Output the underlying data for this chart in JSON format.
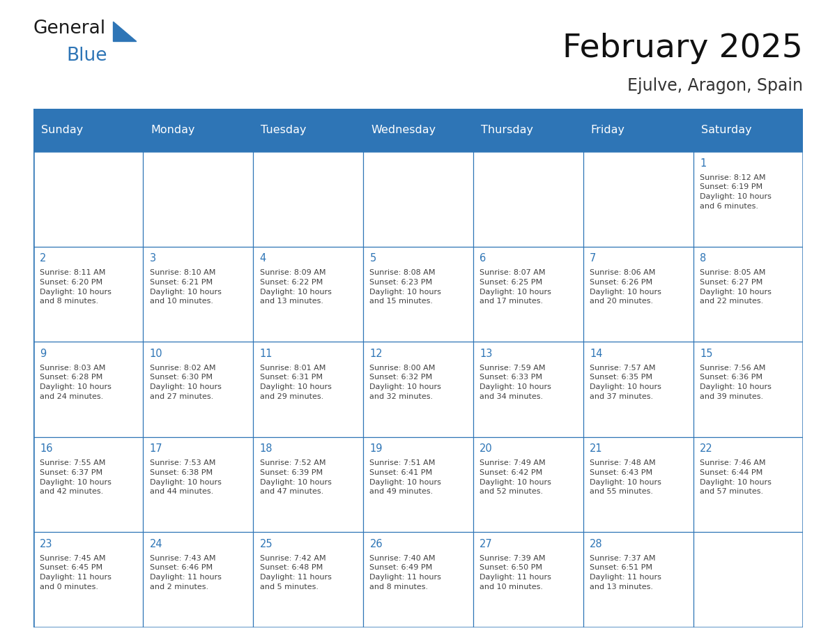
{
  "title": "February 2025",
  "subtitle": "Ejulve, Aragon, Spain",
  "header_bg_color": "#2E75B6",
  "header_text_color": "#FFFFFF",
  "cell_bg_color": "#FFFFFF",
  "grid_line_color": "#2E75B6",
  "text_color": "#404040",
  "day_number_color": "#2E75B6",
  "days_of_week": [
    "Sunday",
    "Monday",
    "Tuesday",
    "Wednesday",
    "Thursday",
    "Friday",
    "Saturday"
  ],
  "logo_general_color": "#1a1a1a",
  "logo_blue_color": "#2E75B6",
  "calendar_data": [
    [
      null,
      null,
      null,
      null,
      null,
      null,
      {
        "day": 1,
        "sunrise": "8:12 AM",
        "sunset": "6:19 PM",
        "daylight": "10 hours\nand 6 minutes."
      }
    ],
    [
      {
        "day": 2,
        "sunrise": "8:11 AM",
        "sunset": "6:20 PM",
        "daylight": "10 hours\nand 8 minutes."
      },
      {
        "day": 3,
        "sunrise": "8:10 AM",
        "sunset": "6:21 PM",
        "daylight": "10 hours\nand 10 minutes."
      },
      {
        "day": 4,
        "sunrise": "8:09 AM",
        "sunset": "6:22 PM",
        "daylight": "10 hours\nand 13 minutes."
      },
      {
        "day": 5,
        "sunrise": "8:08 AM",
        "sunset": "6:23 PM",
        "daylight": "10 hours\nand 15 minutes."
      },
      {
        "day": 6,
        "sunrise": "8:07 AM",
        "sunset": "6:25 PM",
        "daylight": "10 hours\nand 17 minutes."
      },
      {
        "day": 7,
        "sunrise": "8:06 AM",
        "sunset": "6:26 PM",
        "daylight": "10 hours\nand 20 minutes."
      },
      {
        "day": 8,
        "sunrise": "8:05 AM",
        "sunset": "6:27 PM",
        "daylight": "10 hours\nand 22 minutes."
      }
    ],
    [
      {
        "day": 9,
        "sunrise": "8:03 AM",
        "sunset": "6:28 PM",
        "daylight": "10 hours\nand 24 minutes."
      },
      {
        "day": 10,
        "sunrise": "8:02 AM",
        "sunset": "6:30 PM",
        "daylight": "10 hours\nand 27 minutes."
      },
      {
        "day": 11,
        "sunrise": "8:01 AM",
        "sunset": "6:31 PM",
        "daylight": "10 hours\nand 29 minutes."
      },
      {
        "day": 12,
        "sunrise": "8:00 AM",
        "sunset": "6:32 PM",
        "daylight": "10 hours\nand 32 minutes."
      },
      {
        "day": 13,
        "sunrise": "7:59 AM",
        "sunset": "6:33 PM",
        "daylight": "10 hours\nand 34 minutes."
      },
      {
        "day": 14,
        "sunrise": "7:57 AM",
        "sunset": "6:35 PM",
        "daylight": "10 hours\nand 37 minutes."
      },
      {
        "day": 15,
        "sunrise": "7:56 AM",
        "sunset": "6:36 PM",
        "daylight": "10 hours\nand 39 minutes."
      }
    ],
    [
      {
        "day": 16,
        "sunrise": "7:55 AM",
        "sunset": "6:37 PM",
        "daylight": "10 hours\nand 42 minutes."
      },
      {
        "day": 17,
        "sunrise": "7:53 AM",
        "sunset": "6:38 PM",
        "daylight": "10 hours\nand 44 minutes."
      },
      {
        "day": 18,
        "sunrise": "7:52 AM",
        "sunset": "6:39 PM",
        "daylight": "10 hours\nand 47 minutes."
      },
      {
        "day": 19,
        "sunrise": "7:51 AM",
        "sunset": "6:41 PM",
        "daylight": "10 hours\nand 49 minutes."
      },
      {
        "day": 20,
        "sunrise": "7:49 AM",
        "sunset": "6:42 PM",
        "daylight": "10 hours\nand 52 minutes."
      },
      {
        "day": 21,
        "sunrise": "7:48 AM",
        "sunset": "6:43 PM",
        "daylight": "10 hours\nand 55 minutes."
      },
      {
        "day": 22,
        "sunrise": "7:46 AM",
        "sunset": "6:44 PM",
        "daylight": "10 hours\nand 57 minutes."
      }
    ],
    [
      {
        "day": 23,
        "sunrise": "7:45 AM",
        "sunset": "6:45 PM",
        "daylight": "11 hours\nand 0 minutes."
      },
      {
        "day": 24,
        "sunrise": "7:43 AM",
        "sunset": "6:46 PM",
        "daylight": "11 hours\nand 2 minutes."
      },
      {
        "day": 25,
        "sunrise": "7:42 AM",
        "sunset": "6:48 PM",
        "daylight": "11 hours\nand 5 minutes."
      },
      {
        "day": 26,
        "sunrise": "7:40 AM",
        "sunset": "6:49 PM",
        "daylight": "11 hours\nand 8 minutes."
      },
      {
        "day": 27,
        "sunrise": "7:39 AM",
        "sunset": "6:50 PM",
        "daylight": "11 hours\nand 10 minutes."
      },
      {
        "day": 28,
        "sunrise": "7:37 AM",
        "sunset": "6:51 PM",
        "daylight": "11 hours\nand 13 minutes."
      },
      null
    ]
  ]
}
